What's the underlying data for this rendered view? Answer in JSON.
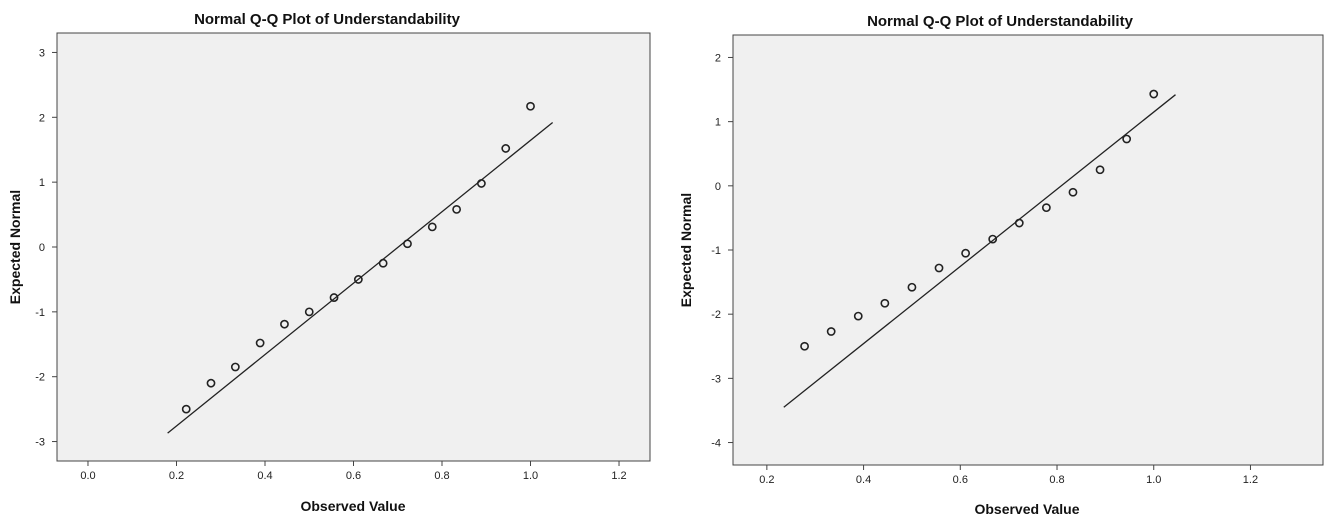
{
  "chart_data": [
    {
      "type": "scatter",
      "title": "Normal Q-Q Plot of Understandability",
      "xlabel": "Observed Value",
      "ylabel": "Expected Normal",
      "xlim": [
        -0.07,
        1.27
      ],
      "ylim": [
        -3.3,
        3.3
      ],
      "xticks": [
        "0.0",
        "0.2",
        "0.4",
        "0.6",
        "0.8",
        "1.0",
        "1.2"
      ],
      "yticks": [
        "-3",
        "-2",
        "-1",
        "0",
        "1",
        "2",
        "3"
      ],
      "grid": false,
      "series": [
        {
          "x": [
            0.222,
            0.278,
            0.333,
            0.389,
            0.444,
            0.5,
            0.556,
            0.611,
            0.667,
            0.722,
            0.778,
            0.833,
            0.889,
            0.944,
            1.0
          ],
          "y": [
            -2.5,
            -2.1,
            -1.85,
            -1.48,
            -1.19,
            -1.0,
            -0.78,
            -0.5,
            -0.25,
            0.05,
            0.31,
            0.58,
            0.98,
            1.52,
            2.17
          ]
        }
      ],
      "reference_line": {
        "x": [
          0.18,
          1.05
        ],
        "y": [
          -2.87,
          1.92
        ]
      }
    },
    {
      "type": "scatter",
      "title": "Normal Q-Q Plot of Understandability",
      "xlabel": "Observed Value",
      "ylabel": "Expected Normal",
      "xlim": [
        0.13,
        1.35
      ],
      "ylim": [
        -4.35,
        2.35
      ],
      "xticks": [
        "0.2",
        "0.4",
        "0.6",
        "0.8",
        "1.0",
        "1.2"
      ],
      "yticks": [
        "-4",
        "-3",
        "-2",
        "-1",
        "0",
        "1",
        "2"
      ],
      "grid": false,
      "series": [
        {
          "x": [
            0.278,
            0.333,
            0.389,
            0.444,
            0.5,
            0.556,
            0.611,
            0.667,
            0.722,
            0.778,
            0.833,
            0.889,
            0.944,
            1.0
          ],
          "y": [
            -2.5,
            -2.27,
            -2.03,
            -1.83,
            -1.58,
            -1.28,
            -1.05,
            -0.83,
            -0.58,
            -0.34,
            -0.1,
            0.25,
            0.73,
            1.43
          ]
        }
      ],
      "reference_line": {
        "x": [
          0.235,
          1.045
        ],
        "y": [
          -3.45,
          1.42
        ]
      }
    }
  ]
}
